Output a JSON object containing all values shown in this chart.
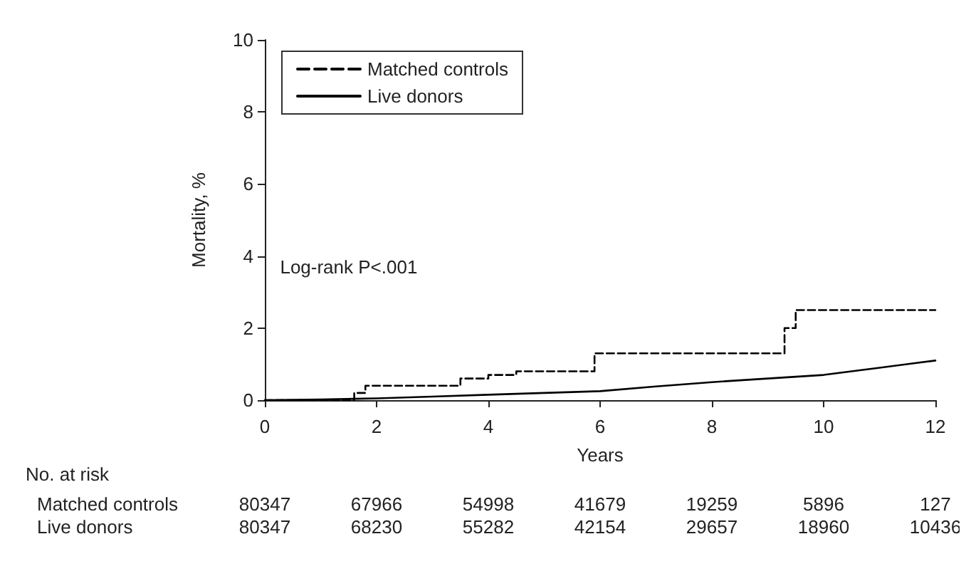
{
  "chart_data": {
    "type": "line",
    "xlabel": "Years",
    "ylabel": "Mortality, %",
    "xlim": [
      0,
      12
    ],
    "xticks": [
      0,
      2,
      4,
      6,
      8,
      10,
      12
    ],
    "ylim": [
      0,
      10
    ],
    "yticks": [
      0,
      2,
      4,
      6,
      8,
      10
    ],
    "grid": false,
    "legend": "top left",
    "marker": "none",
    "series": [
      {
        "name": "Matched controls",
        "type": "step",
        "line_style": "dashed",
        "color": "#000000",
        "x": [
          0,
          1.6,
          1.8,
          3.5,
          4,
          4.5,
          5.9,
          9.3,
          9.5,
          12
        ],
        "values": [
          0,
          0.2,
          0.4,
          0.6,
          0.7,
          0.8,
          1.3,
          2.0,
          2.5,
          2.5
        ]
      },
      {
        "name": "Live donors",
        "line_style": "solid",
        "color": "#000000",
        "x": [
          0,
          1,
          2,
          3,
          4,
          5,
          6,
          7,
          8,
          9,
          10,
          11,
          12
        ],
        "values": [
          0,
          0.02,
          0.05,
          0.1,
          0.15,
          0.2,
          0.25,
          0.38,
          0.5,
          0.6,
          0.7,
          0.9,
          1.1
        ]
      }
    ],
    "annotations": [
      "Log-rank P<.001",
      "No. at risk",
      "Matched controls",
      "80347",
      "67966",
      "54998",
      "41679",
      "19259",
      "5896",
      "127",
      "Live donors",
      "80347",
      "68230",
      "55282",
      "42154",
      "29657",
      "18960",
      "10436"
    ]
  }
}
